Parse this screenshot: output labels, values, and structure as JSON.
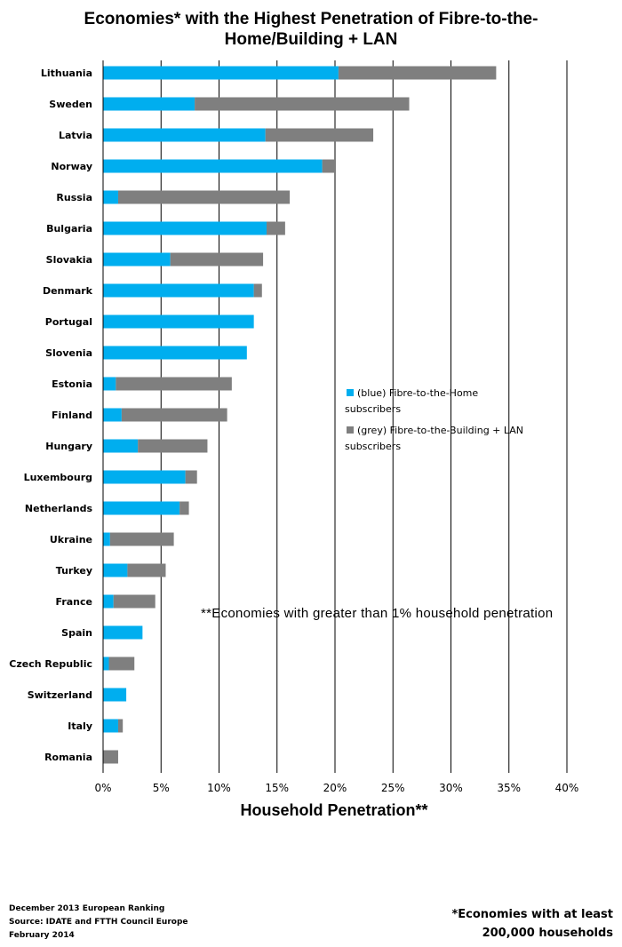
{
  "title_lines": [
    "Economies* with the Highest Penetration of Fibre-to-the-",
    "Home/Building + LAN"
  ],
  "chart_data": {
    "type": "bar",
    "orientation": "horizontal",
    "stacked": true,
    "title": "Economies* with the Highest Penetration of Fibre-to-the-Home/Building + LAN",
    "xlabel": "Household Penetration**",
    "ylabel": "",
    "xlim": [
      0,
      40
    ],
    "xticks": [
      "0%",
      "5%",
      "10%",
      "15%",
      "20%",
      "25%",
      "30%",
      "35%",
      "40%"
    ],
    "grid": "vertical",
    "legend_position": "right",
    "categories": [
      "Lithuania",
      "Sweden",
      "Latvia",
      "Norway",
      "Russia",
      "Bulgaria",
      "Slovakia",
      "Denmark",
      "Portugal",
      "Slovenia",
      "Estonia",
      "Finland",
      "Hungary",
      "Luxembourg",
      "Netherlands",
      "Ukraine",
      "Turkey",
      "France",
      "Spain",
      "Czech Republic",
      "Switzerland",
      "Italy",
      "Romania"
    ],
    "series": [
      {
        "name": "(blue) Fibre-to-the-Home subscribers",
        "color": "#00aeef",
        "values": [
          20.3,
          7.9,
          14.0,
          18.9,
          1.3,
          14.1,
          5.8,
          13.0,
          13.0,
          12.4,
          1.1,
          1.6,
          3.0,
          7.1,
          6.6,
          0.6,
          2.1,
          0.9,
          3.4,
          0.5,
          2.0,
          1.3,
          0.0
        ]
      },
      {
        "name": "(grey) Fibre-to-the-Building + LAN subscribers",
        "color": "#7f7f7f",
        "values": [
          13.6,
          18.5,
          9.3,
          1.1,
          14.8,
          1.6,
          8.0,
          0.7,
          0.0,
          0.0,
          10.0,
          9.1,
          6.0,
          1.0,
          0.8,
          5.5,
          3.3,
          3.6,
          0.0,
          2.2,
          0.0,
          0.4,
          1.3
        ]
      }
    ],
    "annotations": [
      "**Economies with greater than 1% household penetration"
    ]
  },
  "legend": {
    "items": [
      {
        "color": "#00aeef",
        "line1": "(blue) Fibre-to-the-Home",
        "line2": "subscribers"
      },
      {
        "color": "#7f7f7f",
        "line1": "(grey) Fibre-to-the-Building + LAN",
        "line2": "subscribers"
      }
    ]
  },
  "note": "**Economies with greater than 1% household penetration",
  "footer_left": [
    "December 2013 European Ranking",
    "Source: IDATE and FTTH Council Europe",
    "February 2014"
  ],
  "footer_right": [
    "*Economies with at least",
    "200,000 households"
  ]
}
